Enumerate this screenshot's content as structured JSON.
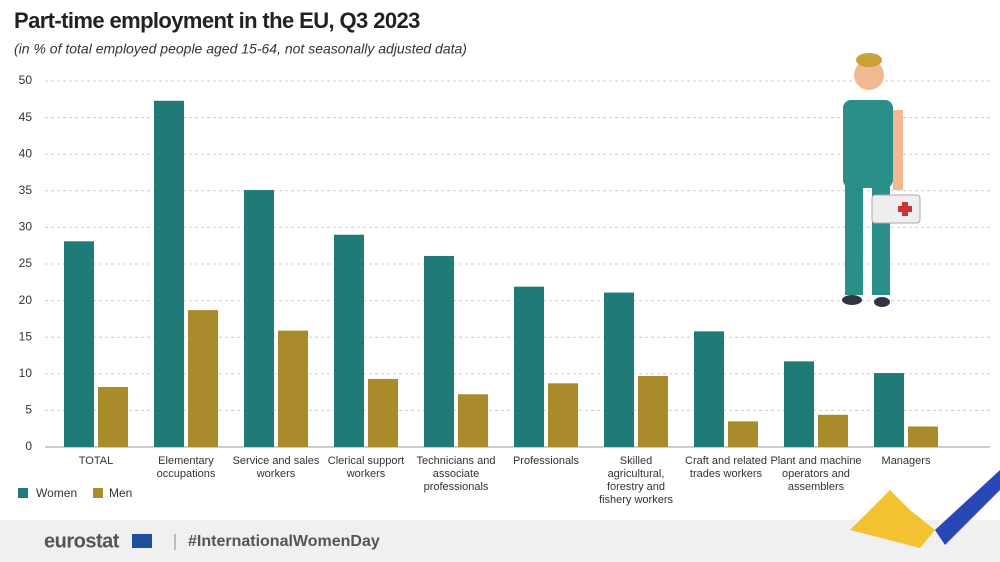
{
  "chart_data": {
    "type": "bar",
    "title": "Part-time employment in the EU, Q3 2023",
    "subtitle": "(in % of total employed people aged 15-64, not seasonally adjusted data)",
    "categories": [
      "TOTAL",
      "Elementary occupations",
      "Service and sales workers",
      "Clerical support workers",
      "Technicians and associate professionals",
      "Professionals",
      "Skilled agricultural, forestry and fishery workers",
      "Craft and related trades workers",
      "Plant and machine operators and assemblers",
      "Managers"
    ],
    "series": [
      {
        "name": "Women",
        "color": "#1f7a78",
        "values": [
          28.1,
          47.3,
          35.1,
          29.0,
          26.1,
          21.9,
          21.1,
          15.8,
          11.7,
          10.1
        ]
      },
      {
        "name": "Men",
        "color": "#a98b2c",
        "values": [
          8.2,
          18.7,
          15.9,
          9.3,
          7.2,
          8.7,
          9.7,
          3.5,
          4.4,
          2.8
        ]
      }
    ],
    "ylim": [
      0,
      50
    ],
    "yticks": [
      0,
      5,
      10,
      15,
      20,
      25,
      30,
      35,
      40,
      45,
      50
    ],
    "grid": true,
    "source": "eurostat",
    "hashtag": "#InternationalWomenDay"
  }
}
